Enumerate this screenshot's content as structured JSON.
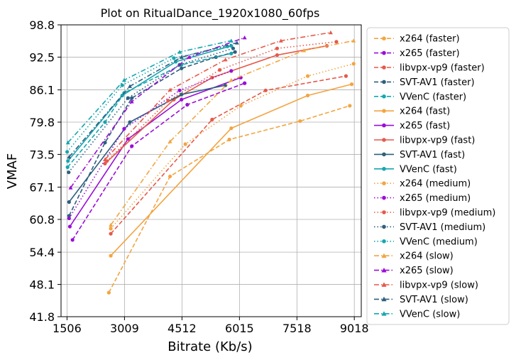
{
  "chart_data": {
    "type": "line",
    "title": "Plot on RitualDance_1920x1080_60fps",
    "xlabel": "Bitrate (Kb/s)",
    "ylabel": "VMAF",
    "xlim": [
      1350,
      9200
    ],
    "ylim": [
      41.8,
      98.8
    ],
    "xticks": [
      1506,
      3009,
      4512,
      6015,
      7518,
      9018
    ],
    "yticks": [
      41.8,
      48.1,
      54.4,
      60.8,
      67.1,
      73.5,
      79.8,
      86.1,
      92.5,
      98.8
    ],
    "grid": true,
    "legend_position": "right",
    "series": [
      {
        "name": "x264 (faster)",
        "color": "#f2a541",
        "dash": "dashed",
        "marker": "circle",
        "x": [
          2600,
          4200,
          5750,
          7600,
          8900
        ],
        "y": [
          46.5,
          69.2,
          76.4,
          80.0,
          83.0
        ]
      },
      {
        "name": "x265 (faster)",
        "color": "#9a0dd8",
        "dash": "dashed",
        "marker": "circle",
        "x": [
          1650,
          3200,
          4650,
          6150,
          6150
        ],
        "y": [
          56.8,
          75.1,
          83.2,
          87.4,
          87.4
        ]
      },
      {
        "name": "libvpx-vp9 (faster)",
        "color": "#e5594a",
        "dash": "dashed",
        "marker": "circle",
        "x": [
          2650,
          5300,
          6700,
          8800
        ],
        "y": [
          58.0,
          80.3,
          86.0,
          88.8
        ]
      },
      {
        "name": "SVT-AV1 (faster)",
        "color": "#2e5f7f",
        "dash": "dashed",
        "marker": "circle",
        "x": [
          1560,
          2500,
          3200,
          4500,
          5400,
          5900
        ],
        "y": [
          61.5,
          75.8,
          84.5,
          90.3,
          92.5,
          93.5
        ]
      },
      {
        "name": "VVenC (faster)",
        "color": "#16a6b0",
        "dash": "dashed",
        "marker": "circle",
        "x": [
          1520,
          2500,
          3000,
          4500,
          5800
        ],
        "y": [
          71.0,
          79.8,
          85.5,
          91.0,
          93.2
        ]
      },
      {
        "name": "x264 (fast)",
        "color": "#f2a541",
        "dash": "solid",
        "marker": "circle",
        "x": [
          2650,
          5800,
          7800,
          8950
        ],
        "y": [
          53.7,
          78.6,
          85.0,
          87.2
        ]
      },
      {
        "name": "x265 (fast)",
        "color": "#9a0dd8",
        "dash": "solid",
        "marker": "circle",
        "x": [
          1580,
          3100,
          4500,
          6050
        ],
        "y": [
          59.4,
          76.5,
          84.2,
          88.5
        ]
      },
      {
        "name": "libvpx-vp9 (fast)",
        "color": "#e5594a",
        "dash": "solid",
        "marker": "circle",
        "x": [
          2500,
          4300,
          5300,
          7000,
          8300
        ],
        "y": [
          71.7,
          84.2,
          88.5,
          92.9,
          94.7
        ]
      },
      {
        "name": "SVT-AV1 (fast)",
        "color": "#2e5f7f",
        "dash": "solid",
        "marker": "circle",
        "x": [
          1560,
          3150,
          4500,
          5650
        ],
        "y": [
          64.2,
          79.8,
          85.2,
          87.0
        ]
      },
      {
        "name": "VVenC (fast)",
        "color": "#16a6b0",
        "dash": "solid",
        "marker": "circle",
        "x": [
          1530,
          2950,
          4350,
          5800
        ],
        "y": [
          72.2,
          85.0,
          91.6,
          94.7
        ]
      },
      {
        "name": "x264 (medium)",
        "color": "#f2a541",
        "dash": "dotted",
        "marker": "circle",
        "x": [
          2650,
          4600,
          6050,
          7800,
          9000
        ],
        "y": [
          59.0,
          75.5,
          83.0,
          88.8,
          91.2
        ]
      },
      {
        "name": "x265 (medium)",
        "color": "#9a0dd8",
        "dash": "dotted",
        "marker": "circle",
        "x": [
          1560,
          3000,
          4450,
          5800
        ],
        "y": [
          61.0,
          78.5,
          86.0,
          89.8
        ]
      },
      {
        "name": "libvpx-vp9 (medium)",
        "color": "#e5594a",
        "dash": "dotted",
        "marker": "circle",
        "x": [
          2550,
          4150,
          5500,
          7000,
          8550
        ],
        "y": [
          72.2,
          84.0,
          90.0,
          94.2,
          95.5
        ]
      },
      {
        "name": "SVT-AV1 (medium)",
        "color": "#2e5f7f",
        "dash": "dotted",
        "marker": "circle",
        "x": [
          1550,
          3100,
          4450,
          5850
        ],
        "y": [
          70.0,
          84.5,
          91.0,
          94.2
        ]
      },
      {
        "name": "VVenC (medium)",
        "color": "#16a6b0",
        "dash": "dotted",
        "marker": "circle",
        "x": [
          1510,
          2950,
          4300,
          5700
        ],
        "y": [
          74.0,
          87.0,
          92.3,
          94.6
        ]
      },
      {
        "name": "x264 (slow)",
        "color": "#f2a541",
        "dash": "dashdot",
        "marker": "triangle",
        "x": [
          2650,
          4200,
          5800,
          7700,
          9000
        ],
        "y": [
          59.7,
          76.0,
          88.0,
          93.8,
          95.7
        ]
      },
      {
        "name": "x265 (slow)",
        "color": "#9a0dd8",
        "dash": "dashdot",
        "marker": "triangle",
        "x": [
          1600,
          3200,
          4700,
          6150
        ],
        "y": [
          67.0,
          83.8,
          92.5,
          96.3
        ]
      },
      {
        "name": "libvpx-vp9 (slow)",
        "color": "#e5594a",
        "dash": "dashdot",
        "marker": "triangle",
        "x": [
          2500,
          4200,
          5650,
          7100,
          8400
        ],
        "y": [
          72.5,
          86.1,
          92.0,
          95.7,
          97.3
        ]
      },
      {
        "name": "SVT-AV1 (slow)",
        "color": "#2e5f7f",
        "dash": "dashdot",
        "marker": "triangle",
        "x": [
          1560,
          3150,
          4500,
          5950
        ],
        "y": [
          73.0,
          86.8,
          92.5,
          95.3
        ]
      },
      {
        "name": "VVenC (slow)",
        "color": "#16a6b0",
        "dash": "dashdot",
        "marker": "triangle",
        "x": [
          1530,
          3000,
          4450,
          5800
        ],
        "y": [
          75.8,
          88.0,
          93.5,
          95.7
        ]
      }
    ]
  }
}
